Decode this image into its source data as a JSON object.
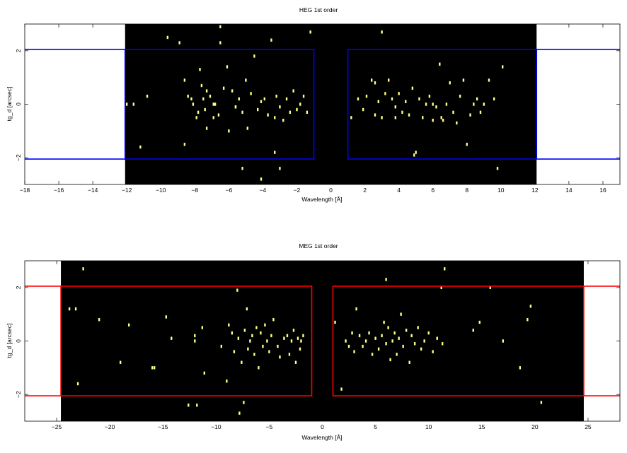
{
  "chart_data": [
    {
      "type": "scatter",
      "title": "HEG 1st order",
      "xlabel": "Wavelength [Å]",
      "ylabel": "tg_d [arcsec]",
      "xlim": [
        -18,
        17
      ],
      "ylim": [
        -3.0,
        3.0
      ],
      "xticks": [
        -18,
        -16,
        -14,
        -12,
        -10,
        -8,
        -6,
        -4,
        -2,
        0,
        2,
        4,
        6,
        8,
        10,
        12,
        14,
        16
      ],
      "yticks": [
        -2,
        0,
        2
      ],
      "detector_range": [
        -12.1,
        12.1
      ],
      "colors": {
        "background": "#000000",
        "event": "#ffff80",
        "region": "#0000ff"
      },
      "regions": [
        {
          "x": [
            -12.1,
            -1.0
          ],
          "y": [
            -2.05,
            2.05
          ]
        },
        {
          "x": [
            1.0,
            12.1
          ],
          "y": [
            -2.05,
            2.05
          ]
        }
      ],
      "extraction_lines_y": [
        2.05,
        -2.05
      ],
      "points": [
        [
          -12.0,
          0.0
        ],
        [
          -11.6,
          0.0
        ],
        [
          -11.2,
          -1.6
        ],
        [
          -10.8,
          0.3
        ],
        [
          -9.6,
          2.5
        ],
        [
          -8.9,
          2.3
        ],
        [
          -8.6,
          0.9
        ],
        [
          -8.4,
          0.3
        ],
        [
          -8.2,
          0.2
        ],
        [
          -8.1,
          0.0
        ],
        [
          -7.9,
          -0.5
        ],
        [
          -7.7,
          1.3
        ],
        [
          -7.6,
          0.7
        ],
        [
          -7.5,
          0.2
        ],
        [
          -7.4,
          -0.2
        ],
        [
          -7.3,
          0.5
        ],
        [
          -7.1,
          0.3
        ],
        [
          -6.9,
          -0.5
        ],
        [
          -6.8,
          0.0
        ],
        [
          -6.6,
          -0.4
        ],
        [
          -6.5,
          2.3
        ],
        [
          -6.3,
          0.6
        ],
        [
          -6.1,
          1.4
        ],
        [
          -6.0,
          -1.0
        ],
        [
          -5.8,
          0.5
        ],
        [
          -5.6,
          -0.1
        ],
        [
          -5.4,
          0.2
        ],
        [
          -5.2,
          -0.3
        ],
        [
          -5.0,
          0.9
        ],
        [
          -4.9,
          -0.9
        ],
        [
          -4.7,
          0.4
        ],
        [
          -4.5,
          1.8
        ],
        [
          -4.3,
          -0.2
        ],
        [
          -4.1,
          0.1
        ],
        [
          -3.9,
          0.2
        ],
        [
          -3.7,
          -0.4
        ],
        [
          -3.5,
          2.4
        ],
        [
          -3.3,
          -0.5
        ],
        [
          -3.2,
          0.3
        ],
        [
          -3.0,
          -0.1
        ],
        [
          -2.8,
          -0.6
        ],
        [
          -2.6,
          0.2
        ],
        [
          -2.4,
          -0.3
        ],
        [
          -2.2,
          0.5
        ],
        [
          -2.0,
          -0.2
        ],
        [
          -1.8,
          0.0
        ],
        [
          -1.6,
          0.3
        ],
        [
          -1.4,
          -0.3
        ],
        [
          -6.5,
          2.9
        ],
        [
          -5.2,
          -2.4
        ],
        [
          -4.1,
          -2.8
        ],
        [
          -3.3,
          -1.8
        ],
        [
          -3.0,
          -2.4
        ],
        [
          -8.6,
          -1.5
        ],
        [
          -7.3,
          -0.9
        ],
        [
          -5.6,
          -0.1
        ],
        [
          -6.9,
          0.0
        ],
        [
          -7.8,
          -0.3
        ],
        [
          -1.2,
          2.7
        ],
        [
          1.2,
          -0.5
        ],
        [
          1.6,
          0.2
        ],
        [
          1.9,
          -0.2
        ],
        [
          2.1,
          0.3
        ],
        [
          2.4,
          0.9
        ],
        [
          2.6,
          -0.4
        ],
        [
          2.8,
          0.1
        ],
        [
          3.0,
          -0.5
        ],
        [
          3.2,
          0.4
        ],
        [
          3.4,
          0.9
        ],
        [
          3.6,
          0.2
        ],
        [
          3.8,
          -0.1
        ],
        [
          4.0,
          0.4
        ],
        [
          4.2,
          -0.3
        ],
        [
          4.4,
          0.1
        ],
        [
          4.6,
          -0.4
        ],
        [
          4.8,
          0.6
        ],
        [
          5.0,
          -1.8
        ],
        [
          5.2,
          0.2
        ],
        [
          5.4,
          -0.5
        ],
        [
          5.6,
          0.0
        ],
        [
          5.8,
          0.3
        ],
        [
          6.0,
          -0.6
        ],
        [
          6.2,
          -0.1
        ],
        [
          6.4,
          1.5
        ],
        [
          6.6,
          -0.6
        ],
        [
          6.8,
          0.0
        ],
        [
          7.0,
          0.8
        ],
        [
          7.2,
          -0.3
        ],
        [
          7.4,
          -0.7
        ],
        [
          7.6,
          0.3
        ],
        [
          7.8,
          0.9
        ],
        [
          8.0,
          -1.5
        ],
        [
          8.2,
          -0.4
        ],
        [
          8.4,
          0.0
        ],
        [
          8.6,
          0.2
        ],
        [
          8.8,
          -0.3
        ],
        [
          9.0,
          0.0
        ],
        [
          9.3,
          0.9
        ],
        [
          9.6,
          0.2
        ],
        [
          9.8,
          -2.4
        ],
        [
          10.1,
          1.4
        ],
        [
          3.0,
          2.7
        ],
        [
          4.9,
          -1.9
        ],
        [
          6.0,
          0.0
        ],
        [
          6.5,
          -0.5
        ],
        [
          2.6,
          0.8
        ],
        [
          3.8,
          -0.5
        ]
      ]
    },
    {
      "type": "scatter",
      "title": "MEG 1st order",
      "xlabel": "Wavelength [Å]",
      "ylabel": "tg_d [arcsec]",
      "xlim": [
        -28,
        28
      ],
      "ylim": [
        -3.0,
        3.0
      ],
      "xticks": [
        -25,
        -20,
        -15,
        -10,
        -5,
        0,
        5,
        10,
        15,
        20,
        25
      ],
      "yticks": [
        -2,
        0,
        2
      ],
      "detector_range": [
        -24.6,
        24.6
      ],
      "colors": {
        "background": "#000000",
        "event": "#ffff80",
        "region": "#ff0000"
      },
      "regions": [
        {
          "x": [
            -24.6,
            -1.0
          ],
          "y": [
            -2.05,
            2.05
          ]
        },
        {
          "x": [
            1.0,
            24.6
          ],
          "y": [
            -2.05,
            2.05
          ]
        }
      ],
      "extraction_lines_y": [
        2.05,
        -2.05
      ],
      "points": [
        [
          -22.5,
          2.7
        ],
        [
          -23.8,
          1.2
        ],
        [
          -23.2,
          1.2
        ],
        [
          -23.0,
          -1.6
        ],
        [
          -21.0,
          0.8
        ],
        [
          -19.0,
          -0.8
        ],
        [
          -18.2,
          0.6
        ],
        [
          -16.0,
          -1.0
        ],
        [
          -15.8,
          -1.0
        ],
        [
          -14.7,
          0.9
        ],
        [
          -12.6,
          -2.4
        ],
        [
          -11.8,
          -2.4
        ],
        [
          -14.2,
          0.1
        ],
        [
          -12.0,
          0.2
        ],
        [
          -12.0,
          0.0
        ],
        [
          -11.3,
          0.5
        ],
        [
          -11.1,
          -1.2
        ],
        [
          -9.5,
          -0.2
        ],
        [
          -9.0,
          -1.5
        ],
        [
          -8.8,
          0.6
        ],
        [
          -8.5,
          0.3
        ],
        [
          -8.3,
          -0.4
        ],
        [
          -8.0,
          1.9
        ],
        [
          -7.9,
          0.1
        ],
        [
          -7.6,
          -0.8
        ],
        [
          -7.3,
          0.4
        ],
        [
          -7.1,
          1.2
        ],
        [
          -7.0,
          -0.3
        ],
        [
          -6.8,
          0.0
        ],
        [
          -6.6,
          0.2
        ],
        [
          -6.4,
          -0.5
        ],
        [
          -6.2,
          0.5
        ],
        [
          -6.0,
          -1.0
        ],
        [
          -5.8,
          0.3
        ],
        [
          -5.6,
          -0.2
        ],
        [
          -5.4,
          0.6
        ],
        [
          -5.2,
          0.0
        ],
        [
          -5.0,
          -0.4
        ],
        [
          -4.8,
          0.2
        ],
        [
          -4.6,
          0.8
        ],
        [
          -4.2,
          -0.2
        ],
        [
          -4.0,
          -0.6
        ],
        [
          -3.6,
          0.1
        ],
        [
          -3.3,
          0.2
        ],
        [
          -3.1,
          -0.5
        ],
        [
          -2.9,
          0.0
        ],
        [
          -2.7,
          0.4
        ],
        [
          -2.5,
          -0.8
        ],
        [
          -2.3,
          0.1
        ],
        [
          -2.1,
          -0.3
        ],
        [
          -2.0,
          0.0
        ],
        [
          -1.8,
          0.2
        ],
        [
          -7.8,
          -2.7
        ],
        [
          -7.4,
          -2.3
        ],
        [
          1.2,
          0.7
        ],
        [
          1.8,
          -1.8
        ],
        [
          2.2,
          0.0
        ],
        [
          2.5,
          -0.2
        ],
        [
          2.8,
          0.3
        ],
        [
          3.0,
          -0.4
        ],
        [
          3.2,
          1.2
        ],
        [
          3.5,
          0.2
        ],
        [
          3.8,
          -0.2
        ],
        [
          4.1,
          0.0
        ],
        [
          4.4,
          0.3
        ],
        [
          4.7,
          -0.5
        ],
        [
          5.0,
          0.1
        ],
        [
          5.3,
          -0.3
        ],
        [
          5.6,
          0.2
        ],
        [
          5.8,
          0.7
        ],
        [
          6.0,
          -0.1
        ],
        [
          6.2,
          0.5
        ],
        [
          6.4,
          -0.7
        ],
        [
          6.6,
          0.0
        ],
        [
          6.8,
          0.3
        ],
        [
          7.0,
          -0.5
        ],
        [
          7.2,
          0.1
        ],
        [
          7.4,
          1.0
        ],
        [
          7.6,
          -0.2
        ],
        [
          7.9,
          0.4
        ],
        [
          8.2,
          -0.8
        ],
        [
          8.4,
          0.2
        ],
        [
          8.7,
          -0.1
        ],
        [
          9.0,
          0.5
        ],
        [
          9.3,
          -0.3
        ],
        [
          9.6,
          0.0
        ],
        [
          10.0,
          0.3
        ],
        [
          10.4,
          -0.4
        ],
        [
          10.8,
          0.1
        ],
        [
          11.3,
          -0.1
        ],
        [
          6.0,
          2.3
        ],
        [
          11.2,
          2.0
        ],
        [
          11.5,
          2.7
        ],
        [
          14.2,
          0.4
        ],
        [
          14.8,
          0.7
        ],
        [
          17.0,
          0.0
        ],
        [
          18.6,
          -1.0
        ],
        [
          19.3,
          0.8
        ],
        [
          19.6,
          1.3
        ],
        [
          20.6,
          -2.3
        ],
        [
          15.8,
          2.0
        ]
      ]
    }
  ]
}
